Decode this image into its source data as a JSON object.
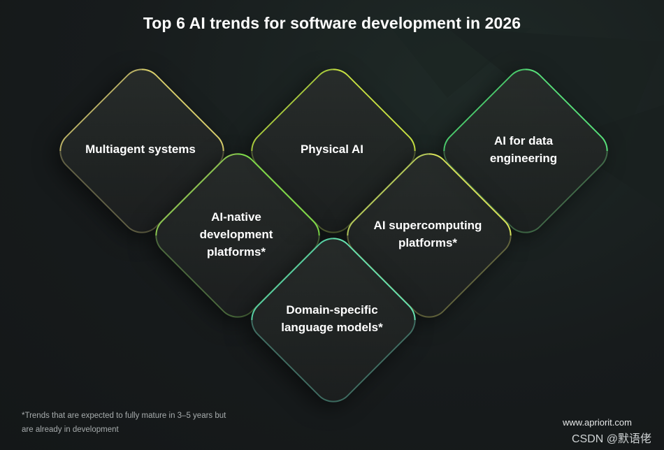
{
  "title": "Top 6 AI trends for software development in 2026",
  "trends": [
    {
      "label": "Multiagent systems"
    },
    {
      "label": "Physical AI"
    },
    {
      "label": "AI for data engineering"
    },
    {
      "label": "AI-native development platforms*"
    },
    {
      "label": "AI supercomputing platforms*"
    },
    {
      "label": "Domain-specific language models*"
    }
  ],
  "footnote": "*Trends that are expected to fully mature in 3–5 years but are already in development",
  "brand_url": "www.apriorit.com",
  "watermark": "CSDN @默语佬"
}
